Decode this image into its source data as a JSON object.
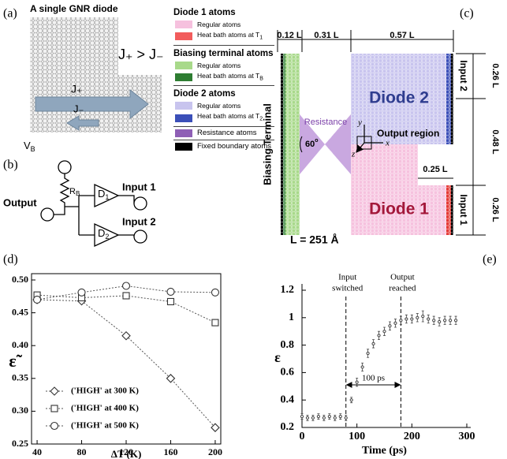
{
  "panel_labels": [
    "(a)",
    "(b)",
    "(c)",
    "(d)",
    "(e)"
  ],
  "panel_a": {
    "title": "A single GNR diode",
    "relation": "J₊ > J₋",
    "forward": "J₊",
    "backward": "J₋"
  },
  "panel_b": {
    "vb": {
      "text": "V",
      "sub": "B"
    },
    "rb": {
      "text": "R",
      "sub": "B"
    },
    "d1": {
      "text": "D",
      "sub": "1"
    },
    "d2": {
      "text": "D",
      "sub": "2"
    },
    "output": "Output",
    "input1": "Input 1",
    "input2": "Input 2"
  },
  "legend": {
    "groups": [
      {
        "title": "Diode 1 atoms",
        "items": [
          {
            "label": "Regular atoms",
            "color": "#f6c1de"
          },
          {
            "label": "Heat bath atoms at T",
            "sub": "1",
            "color": "#f25c5c"
          }
        ]
      },
      {
        "title": "Biasing terminal atoms",
        "items": [
          {
            "label": "Regular atoms",
            "color": "#a8d98a"
          },
          {
            "label": "Heat bath atoms at T",
            "sub": "B",
            "color": "#2e7d32"
          }
        ]
      },
      {
        "title": "Diode 2 atoms",
        "items": [
          {
            "label": "Regular atoms",
            "color": "#c8c4ee"
          },
          {
            "label": "Heat bath atoms at T",
            "sub": "2",
            "color": "#3b4fb8"
          }
        ]
      },
      {
        "items": [
          {
            "label": "Resistance atoms",
            "color": "#8e5fb5"
          }
        ]
      },
      {
        "items": [
          {
            "label": "Fixed boundary atoms",
            "color": "#000000"
          }
        ]
      }
    ]
  },
  "panel_c": {
    "terminal": "Biasing Terminal",
    "resistance": "Resistance",
    "angle": {
      "text": "60",
      "sup": "o"
    },
    "output_region": "Output region",
    "diode2": "Diode 2",
    "diode1": "Diode 1",
    "input2": "Input 2",
    "input1": "Input 1",
    "length": "L = 251 Å",
    "dims": {
      "terminal_width": "0.12 L",
      "resistance_width": "0.31 L",
      "diode_width": "0.57 L",
      "notch_width": "0.25 L",
      "diode2_height": "0.26 L",
      "gap_height": "0.48 L",
      "diode1_height": "0.26 L"
    },
    "axes": [
      "x",
      "y",
      "z"
    ]
  },
  "chart_data": [
    {
      "type": "line",
      "xlabel": "ΔT (K)",
      "ylabel": "ε̃",
      "x": [
        40,
        80,
        120,
        160,
        200
      ],
      "xlim": [
        35,
        205
      ],
      "xticks": [
        40,
        80,
        120,
        160,
        200
      ],
      "ylim": [
        0.25,
        0.5
      ],
      "yticks": [
        0.25,
        {
          "value": 0.3,
          "label": "0.30"
        },
        0.35,
        {
          "value": 0.4,
          "label": "0.40"
        },
        0.45,
        {
          "value": 0.5,
          "label": "0.50"
        }
      ],
      "legend": "lower left",
      "series": [
        {
          "name": "('HIGH' at 300 K)",
          "marker": "diamond",
          "color": "#555555",
          "values": [
            0.47,
            0.468,
            0.415,
            0.35,
            0.275
          ]
        },
        {
          "name": "('HIGH' at 400 K)",
          "marker": "square",
          "color": "#555555",
          "values": [
            0.477,
            0.473,
            0.476,
            0.467,
            0.435
          ]
        },
        {
          "name": "('HIGH' at 500 K)",
          "marker": "circle",
          "color": "#555555",
          "values": [
            0.47,
            0.481,
            0.491,
            0.482,
            0.481
          ]
        }
      ]
    },
    {
      "type": "errorbar",
      "xlabel": "Time (ps)",
      "ylabel": "ε",
      "xlim": [
        0,
        300
      ],
      "xticks": [
        0,
        100,
        200,
        300
      ],
      "ylim": [
        0.2,
        1.2
      ],
      "yticks": [
        0.2,
        0.4,
        0.6,
        0.8,
        1,
        1.2
      ],
      "color": "#444444",
      "x": [
        0,
        10,
        20,
        30,
        40,
        50,
        60,
        70,
        80,
        90,
        100,
        110,
        120,
        130,
        140,
        150,
        160,
        170,
        180,
        190,
        200,
        210,
        220,
        230,
        240,
        250,
        260,
        270,
        280
      ],
      "values": [
        0.28,
        0.27,
        0.27,
        0.28,
        0.27,
        0.28,
        0.27,
        0.28,
        0.27,
        0.4,
        0.53,
        0.64,
        0.74,
        0.81,
        0.87,
        0.9,
        0.94,
        0.96,
        0.98,
        0.99,
        0.99,
        1.0,
        1.01,
        0.99,
        0.98,
        0.97,
        0.98,
        0.98,
        0.98
      ],
      "errors": [
        0.02,
        0.02,
        0.02,
        0.02,
        0.02,
        0.02,
        0.02,
        0.02,
        0.02,
        0.02,
        0.03,
        0.03,
        0.03,
        0.03,
        0.03,
        0.03,
        0.03,
        0.03,
        0.03,
        0.03,
        0.03,
        0.03,
        0.04,
        0.03,
        0.03,
        0.03,
        0.03,
        0.03,
        0.03
      ],
      "markers": [
        {
          "x": 80,
          "label": [
            "Input",
            "switched"
          ]
        },
        {
          "x": 180,
          "label": [
            "Output",
            "reached"
          ]
        }
      ],
      "interval_label": "100 ps"
    }
  ]
}
